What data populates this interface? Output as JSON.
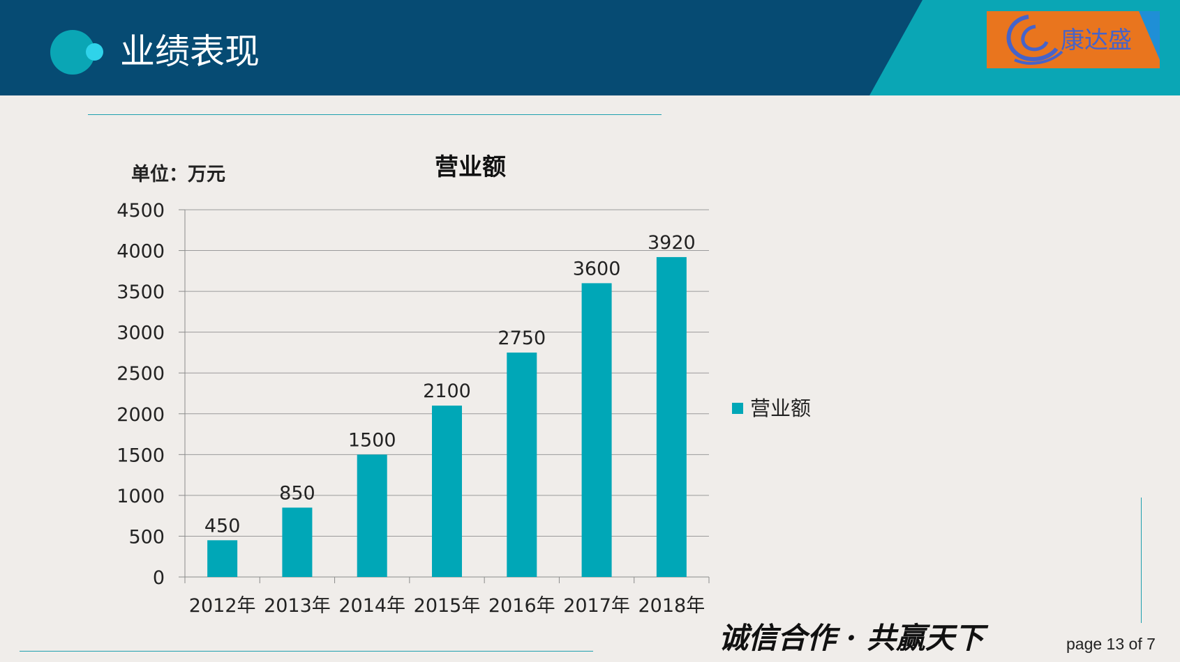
{
  "header": {
    "title": "业绩表现",
    "logo_text": "康达盛",
    "colors": {
      "dark": "#064b73",
      "teal": "#0aa6b5",
      "accent": "#2fd3ea",
      "logo_bg": "#e9751e",
      "logo_fg": "#4663c9"
    }
  },
  "chart_data": {
    "type": "bar",
    "title": "营业额",
    "unit_label": "单位：万元",
    "categories": [
      "2012年",
      "2013年",
      "2014年",
      "2015年",
      "2016年",
      "2017年",
      "2018年"
    ],
    "series": [
      {
        "name": "营业额",
        "values": [
          450,
          850,
          1500,
          2100,
          2750,
          3600,
          3920
        ],
        "color": "#00a7b7"
      }
    ],
    "ylim": [
      0,
      4500
    ],
    "yticks": [
      0,
      500,
      1000,
      1500,
      2000,
      2500,
      3000,
      3500,
      4000,
      4500
    ],
    "grid": true,
    "legend": "right",
    "data_labels": true
  },
  "footer": {
    "slogan": "诚信合作 · 共赢天下",
    "page": "page 13 of 7"
  }
}
